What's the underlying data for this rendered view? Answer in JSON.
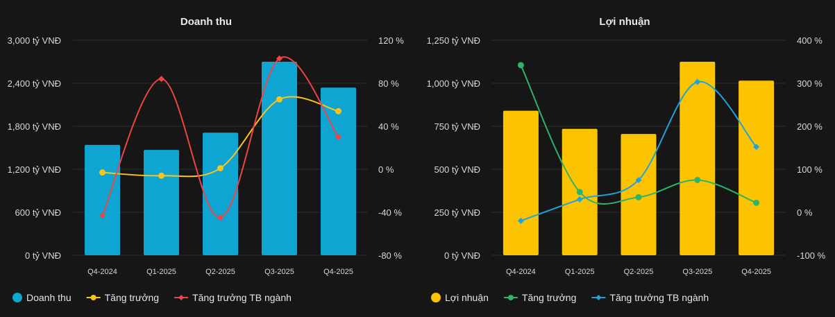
{
  "chart_data": [
    {
      "type": "bar",
      "title": "Doanh thu",
      "categories": [
        "Q4-2024",
        "Q1-2025",
        "Q2-2025",
        "Q3-2025",
        "Q4-2025"
      ],
      "y_left": {
        "ticks": [
          "0 tỷ VNĐ",
          "600 tỷ VNĐ",
          "1,200 tỷ VNĐ",
          "1,800 tỷ VNĐ",
          "2,400 tỷ VNĐ",
          "3,000 tỷ VNĐ"
        ],
        "range": [
          0,
          3000
        ]
      },
      "y_right": {
        "ticks": [
          "-80 %",
          "-40 %",
          "0 %",
          "40 %",
          "80 %",
          "120 %"
        ],
        "range": [
          -80,
          120
        ]
      },
      "series": [
        {
          "name": "Doanh thu",
          "type": "bar",
          "axis": "left",
          "color": "#0ea5d2",
          "values": [
            1540,
            1470,
            1710,
            2700,
            2340
          ]
        },
        {
          "name": "Tăng trưởng",
          "type": "line",
          "axis": "right",
          "color": "#fcc419",
          "marker": "circle",
          "values": [
            -3,
            -6,
            1,
            65,
            54
          ]
        },
        {
          "name": "Tăng trưởng TB ngành",
          "type": "line",
          "axis": "right",
          "color": "#ef4444",
          "marker": "diamond",
          "values": [
            -43,
            84,
            -45,
            103,
            30
          ]
        }
      ]
    },
    {
      "type": "bar",
      "title": "Lợi nhuận",
      "categories": [
        "Q4-2024",
        "Q1-2025",
        "Q2-2025",
        "Q3-2025",
        "Q4-2025"
      ],
      "y_left": {
        "ticks": [
          "0 tỷ VNĐ",
          "250 tỷ VNĐ",
          "500 tỷ VNĐ",
          "750 tỷ VNĐ",
          "1,000 tỷ VNĐ",
          "1,250 tỷ VNĐ"
        ],
        "range": [
          0,
          1250
        ]
      },
      "y_right": {
        "ticks": [
          "-100 %",
          "0 %",
          "100 %",
          "200 %",
          "300 %",
          "400 %"
        ],
        "range": [
          -100,
          400
        ]
      },
      "series": [
        {
          "name": "Lợi nhuận",
          "type": "bar",
          "axis": "left",
          "color": "#fcc400",
          "values": [
            840,
            735,
            705,
            1125,
            1015
          ]
        },
        {
          "name": "Tăng trưởng",
          "type": "line",
          "axis": "right",
          "color": "#2fb36a",
          "marker": "circle",
          "values": [
            342,
            47,
            35,
            75,
            22
          ]
        },
        {
          "name": "Tăng trưởng TB ngành",
          "type": "line",
          "axis": "right",
          "color": "#1fa3dc",
          "marker": "diamond",
          "values": [
            -20,
            30,
            75,
            303,
            152
          ]
        }
      ]
    }
  ]
}
